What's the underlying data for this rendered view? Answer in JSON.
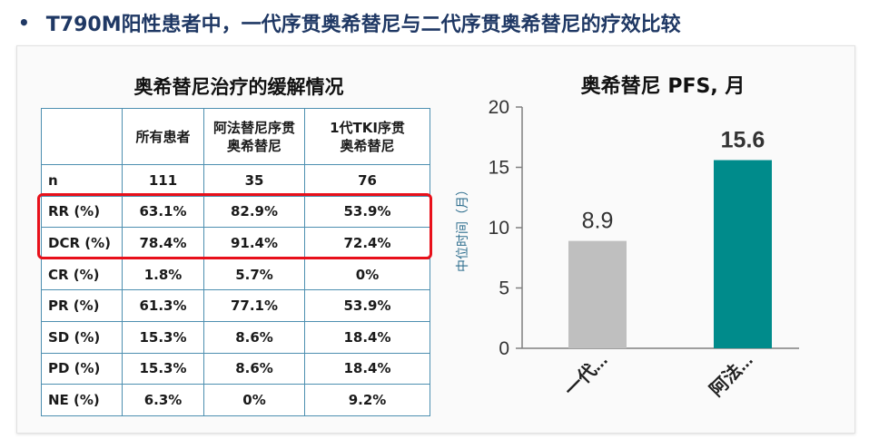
{
  "headline": {
    "bullet": "•",
    "text": "T790M阳性患者中，一代序贯奥希替尼与二代序贯奥希替尼的疗效比较"
  },
  "table": {
    "title": "奥希替尼治疗的缓解情况",
    "headers": [
      "",
      "所有患者",
      "阿法替尼序贯奥希替尼",
      "1代TKI序贯奥希替尼"
    ],
    "rows": [
      [
        "n",
        "111",
        "35",
        "76"
      ],
      [
        "RR (%)",
        "63.1%",
        "82.9%",
        "53.9%"
      ],
      [
        "DCR (%)",
        "78.4%",
        "91.4%",
        "72.4%"
      ],
      [
        "CR (%)",
        "1.8%",
        "5.7%",
        "0%"
      ],
      [
        "PR (%)",
        "61.3%",
        "77.1%",
        "53.9%"
      ],
      [
        "SD (%)",
        "15.3%",
        "8.6%",
        "18.4%"
      ],
      [
        "PD (%)",
        "15.3%",
        "8.6%",
        "18.4%"
      ],
      [
        "NE (%)",
        "6.3%",
        "0%",
        "9.2%"
      ]
    ],
    "highlight_color": "#e8101a"
  },
  "chart_data": {
    "type": "bar",
    "title": "奥希替尼 PFS, 月",
    "ylabel": "中位时间（月）",
    "xlabel": "",
    "categories": [
      "一代...",
      "阿法..."
    ],
    "values": [
      8.9,
      15.6
    ],
    "value_labels": [
      "8.9",
      "15.6"
    ],
    "colors": [
      "#bfbfbf",
      "#008b8b"
    ],
    "ylim": [
      0,
      20
    ],
    "yticks": [
      0,
      5,
      10,
      15,
      20
    ],
    "grid": false,
    "legend": "none"
  }
}
